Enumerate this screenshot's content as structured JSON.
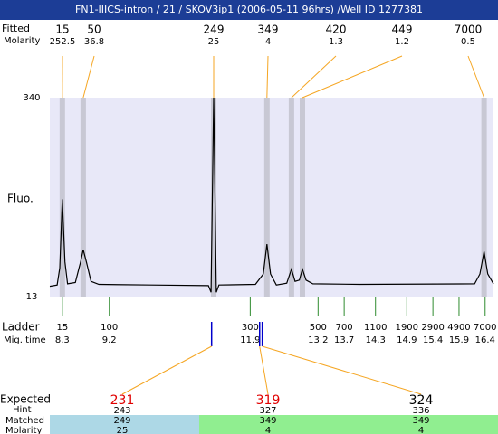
{
  "header": {
    "title": "FN1-IIICS-intron / 21 / SKOV3ip1 (2006-05-11 96hrs) /Well ID 1277381"
  },
  "peaks": {
    "size_label": "Fitted",
    "molarity_label": "Molarity",
    "sizes": [
      15,
      50,
      249,
      349,
      420,
      449,
      7000
    ],
    "molarities": [
      252.5,
      36.8,
      25,
      4,
      1.3,
      1.2,
      0.5
    ],
    "times": [
      8.3,
      8.7,
      11.2,
      12.22,
      12.69,
      12.9,
      16.38
    ]
  },
  "chart_data": {
    "type": "line",
    "y_label": "Fluo.",
    "ylim": [
      13,
      340
    ],
    "yticks": [
      13,
      340
    ],
    "xlim": [
      8.06,
      16.56
    ],
    "x": [
      8.06,
      8.2,
      8.25,
      8.3,
      8.35,
      8.4,
      8.55,
      8.65,
      8.7,
      8.76,
      8.85,
      9.0,
      10.0,
      11.1,
      11.15,
      11.2,
      11.25,
      11.3,
      12.0,
      12.15,
      12.22,
      12.29,
      12.4,
      12.6,
      12.69,
      12.76,
      12.84,
      12.9,
      12.97,
      13.1,
      14.0,
      16.2,
      16.3,
      16.38,
      16.45,
      16.56
    ],
    "values": [
      30,
      32,
      60,
      173,
      70,
      34,
      36,
      70,
      90,
      70,
      38,
      33,
      32,
      31,
      20,
      340,
      20,
      32,
      33,
      50,
      99,
      50,
      32,
      35,
      58,
      38,
      40,
      58,
      40,
      34,
      33,
      34,
      50,
      87,
      50,
      34
    ],
    "color": "#000000",
    "background": "#e8e8f8",
    "band_color": "#c8c8d4"
  },
  "ladder": {
    "label": "Ladder",
    "time_label": "Mig. time",
    "sizes": [
      15,
      100,
      300,
      500,
      700,
      1100,
      1900,
      2900,
      4900,
      7000
    ],
    "times": [
      8.3,
      9.2,
      11.9,
      13.2,
      13.7,
      14.3,
      14.9,
      15.4,
      15.9,
      16.4
    ]
  },
  "matches": {
    "times": [
      11.16,
      12.08,
      12.13
    ],
    "expected_label": "Expected",
    "hint_label": "Hint",
    "matched_label": "Matched",
    "molarity_label": "Molarity",
    "expected": [
      231,
      319,
      324
    ],
    "expected_colors": [
      "#e00000",
      "#e00000",
      "#000000"
    ],
    "hint": [
      243,
      327,
      336
    ],
    "matched": [
      249,
      349,
      349
    ],
    "molarity": [
      25,
      4,
      4
    ]
  }
}
